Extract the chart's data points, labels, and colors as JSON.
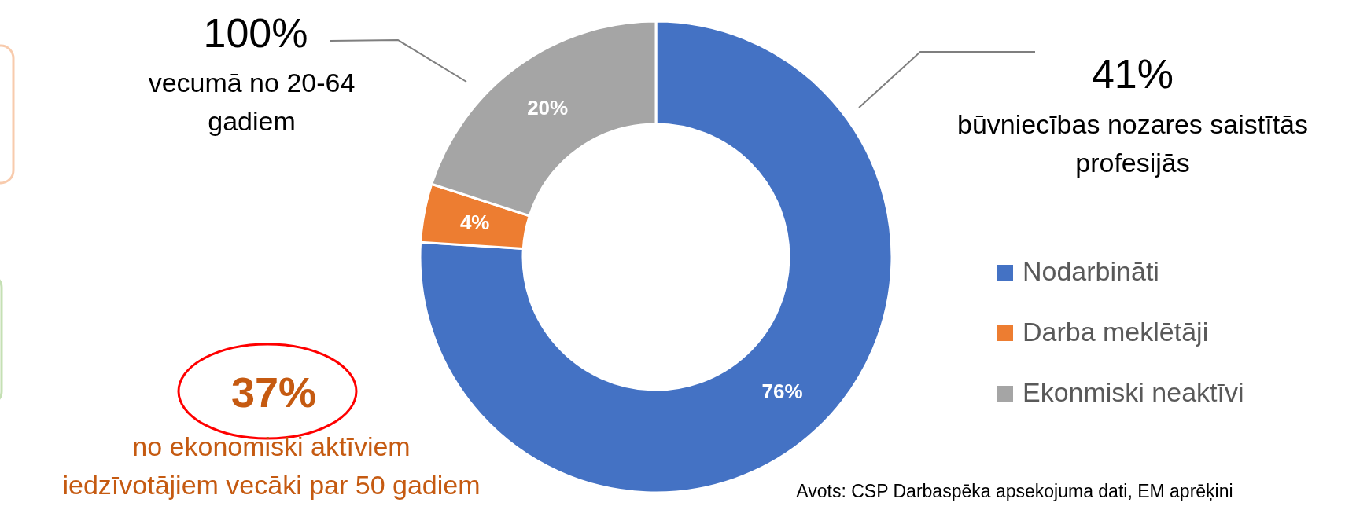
{
  "chart_data": {
    "type": "donut",
    "categories": [
      "Nodarbināti",
      "Darba meklētāji",
      "Ekonmiski neaktīvi"
    ],
    "values": [
      76,
      4,
      20
    ],
    "colors": [
      "#4472c4",
      "#ed7d31",
      "#a5a5a5"
    ],
    "value_labels": [
      "76%",
      "4%",
      "20%"
    ],
    "legend": "right",
    "annotations": [
      "100%",
      "vecumā no 20-64 gadiem",
      "41%",
      "būvniecības nozares saistītās profesijās",
      "37%",
      "no ekonomiski aktīviem iedzīvotājiem vecāki par 50 gadiem",
      "Avots: CSP Darbaspēka apsekojuma dati, EM aprēķini"
    ]
  }
}
